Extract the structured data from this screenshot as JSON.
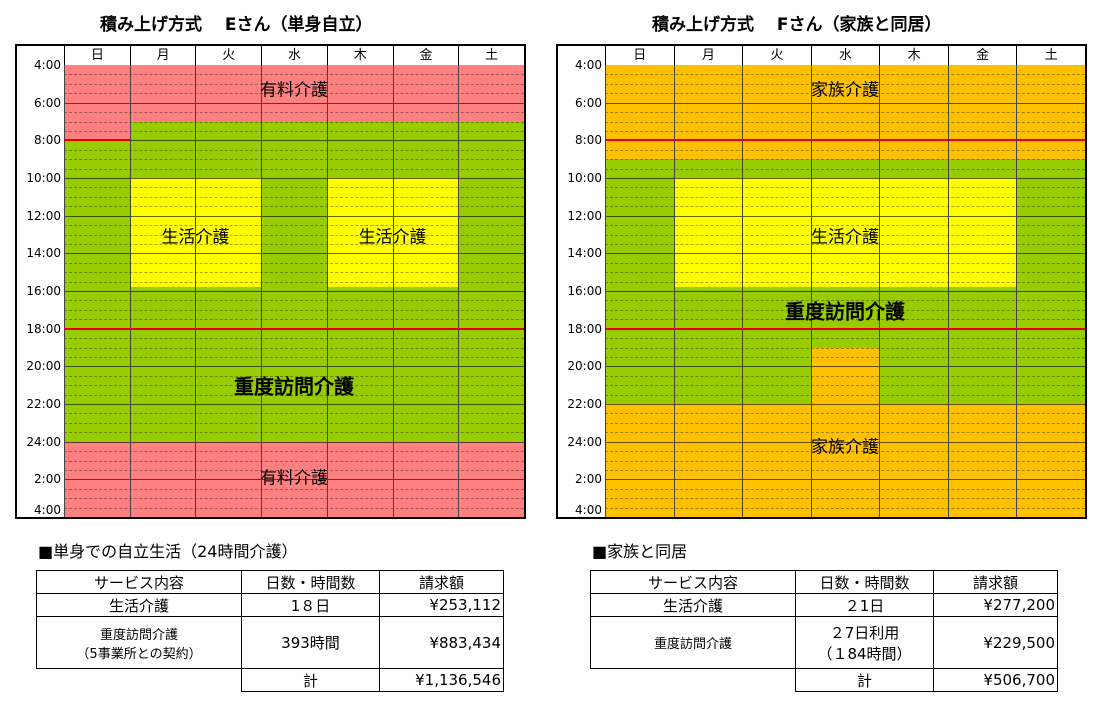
{
  "left": {
    "title": "積み上げ方式　 Eさん（単身自立）",
    "days": [
      "日",
      "月",
      "火",
      "水",
      "木",
      "金",
      "土"
    ],
    "times": [
      "4:00",
      "6:00",
      "8:00",
      "10:00",
      "12:00",
      "14:00",
      "16:00",
      "18:00",
      "20:00",
      "22:00",
      "24:00",
      "2:00",
      "4:00"
    ],
    "labels": {
      "paid_top": "有料介護",
      "life1": "生活介護",
      "life2": "生活介護",
      "heavy": "重度訪問介護",
      "paid_bottom": "有料介護"
    },
    "colors": {
      "paid": "#FF8080",
      "heavy": "#99CC00",
      "life": "#FFFF00"
    },
    "subtitle": "■単身での自立生活（24時間介護）",
    "table": {
      "headers": [
        "サービス内容",
        "日数・時間数",
        "請求額"
      ],
      "rows": [
        {
          "service": "生活介護",
          "days": "1８日",
          "amount": "¥253,112"
        },
        {
          "service1": "重度訪問介護",
          "service2": "（5事業所との契約）",
          "days": "393時間",
          "amount": "¥883,434"
        }
      ],
      "total_label": "計",
      "total": "¥1,136,546"
    }
  },
  "right": {
    "title": "積み上げ方式 　Fさん（家族と同居）",
    "days": [
      "日",
      "月",
      "火",
      "水",
      "木",
      "金",
      "土"
    ],
    "times": [
      "4:00",
      "6:00",
      "8:00",
      "10:00",
      "12:00",
      "14:00",
      "16:00",
      "18:00",
      "20:00",
      "22:00",
      "24:00",
      "2:00",
      "4:00"
    ],
    "labels": {
      "family_top": "家族介護",
      "life": "生活介護",
      "heavy": "重度訪問介護",
      "family_bottom": "家族介護"
    },
    "colors": {
      "family": "#FFC000",
      "heavy": "#99CC00",
      "life": "#FFFF00"
    },
    "subtitle": "■家族と同居",
    "table": {
      "headers": [
        "サービス内容",
        "日数・時間数",
        "請求額"
      ],
      "rows": [
        {
          "service": "生活介護",
          "days": "２1日",
          "amount": "¥277,200"
        },
        {
          "service": "重度訪問介護",
          "days1": "２7日利用",
          "days2": "（１84時間）",
          "amount": "¥229,500"
        }
      ],
      "total_label": "計",
      "total": "¥506,700"
    }
  }
}
